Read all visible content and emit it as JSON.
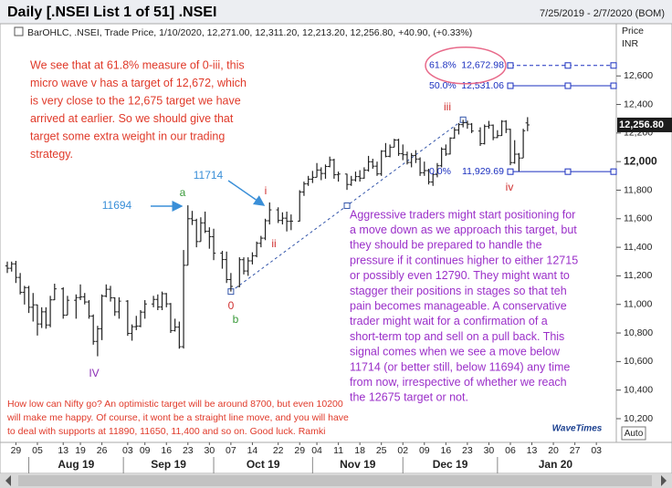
{
  "header": {
    "title": "Daily [.NSEI List 1 of 51] .NSEI",
    "range": "7/25/2019 - 2/7/2020 (BOM)"
  },
  "chart_data": {
    "type": "ohlc",
    "info": "BarOHLC, .NSEI, Trade Price, 1/10/2020, 12,271.00, 12,311.20, 12,213.20, 12,256.80, +40.90, (+0.33%)",
    "axis_title": [
      "Price",
      "INR"
    ],
    "xlim": [
      "2019-07-25",
      "2020-02-07"
    ],
    "ylim": [
      10053,
      12940
    ],
    "yticks": [
      {
        "value": 12600,
        "label": "12,600"
      },
      {
        "value": 12400,
        "label": "12,400"
      },
      {
        "value": 12200,
        "label": "12,200"
      },
      {
        "value": 12000,
        "label": "12,000"
      },
      {
        "value": 11800,
        "label": "11,800"
      },
      {
        "value": 11600,
        "label": "11,600"
      },
      {
        "value": 11400,
        "label": "11,400"
      },
      {
        "value": 11200,
        "label": "11,200"
      },
      {
        "value": 11000,
        "label": "11,000"
      },
      {
        "value": 10800,
        "label": "10,800"
      },
      {
        "value": 10600,
        "label": "10,600"
      },
      {
        "value": 10400,
        "label": "10,400"
      },
      {
        "value": 10200,
        "label": "10,200"
      }
    ],
    "bold_tick": 12000,
    "xticks": [
      {
        "value": "2019-07-29",
        "label": "29"
      },
      {
        "value": "2019-08-05",
        "label": "05"
      },
      {
        "value": "2019-08-13",
        "label": "13"
      },
      {
        "value": "2019-08-19",
        "label": "19"
      },
      {
        "value": "2019-08-26",
        "label": "26"
      },
      {
        "value": "2019-09-03",
        "label": "03"
      },
      {
        "value": "2019-09-09",
        "label": "09"
      },
      {
        "value": "2019-09-16",
        "label": "16"
      },
      {
        "value": "2019-09-23",
        "label": "23"
      },
      {
        "value": "2019-09-30",
        "label": "30"
      },
      {
        "value": "2019-10-07",
        "label": "07"
      },
      {
        "value": "2019-10-14",
        "label": "14"
      },
      {
        "value": "2019-10-22",
        "label": "22"
      },
      {
        "value": "2019-10-29",
        "label": "29"
      },
      {
        "value": "2019-11-04",
        "label": "04"
      },
      {
        "value": "2019-11-11",
        "label": "11"
      },
      {
        "value": "2019-11-18",
        "label": "18"
      },
      {
        "value": "2019-11-25",
        "label": "25"
      },
      {
        "value": "2019-12-02",
        "label": "02"
      },
      {
        "value": "2019-12-09",
        "label": "09"
      },
      {
        "value": "2019-12-16",
        "label": "16"
      },
      {
        "value": "2019-12-23",
        "label": "23"
      },
      {
        "value": "2019-12-30",
        "label": "30"
      },
      {
        "value": "2020-01-06",
        "label": "06"
      },
      {
        "value": "2020-01-13",
        "label": "13"
      },
      {
        "value": "2020-01-20",
        "label": "20"
      },
      {
        "value": "2020-01-27",
        "label": "27"
      },
      {
        "value": "2020-02-03",
        "label": "03"
      }
    ],
    "months": [
      {
        "value": "2019-08-01",
        "label": "Aug 19"
      },
      {
        "value": "2019-09-01",
        "label": "Sep 19"
      },
      {
        "value": "2019-10-01",
        "label": "Oct 19"
      },
      {
        "value": "2019-11-01",
        "label": "Nov 19"
      },
      {
        "value": "2019-12-01",
        "label": "Dec 19"
      },
      {
        "value": "2020-01-01",
        "label": "Jan 20"
      }
    ],
    "color": "#222222",
    "x": [
      "2019-07-25",
      "2019-07-26",
      "2019-07-29",
      "2019-07-30",
      "2019-07-31",
      "2019-08-01",
      "2019-08-02",
      "2019-08-05",
      "2019-08-06",
      "2019-08-07",
      "2019-08-08",
      "2019-08-09",
      "2019-08-13",
      "2019-08-14",
      "2019-08-16",
      "2019-08-19",
      "2019-08-20",
      "2019-08-21",
      "2019-08-22",
      "2019-08-23",
      "2019-08-26",
      "2019-08-27",
      "2019-08-28",
      "2019-08-29",
      "2019-08-30",
      "2019-09-03",
      "2019-09-04",
      "2019-09-05",
      "2019-09-06",
      "2019-09-09",
      "2019-09-11",
      "2019-09-12",
      "2019-09-13",
      "2019-09-16",
      "2019-09-17",
      "2019-09-18",
      "2019-09-19",
      "2019-09-20",
      "2019-09-23",
      "2019-09-24",
      "2019-09-25",
      "2019-09-26",
      "2019-09-27",
      "2019-09-30",
      "2019-10-01",
      "2019-10-03",
      "2019-10-04",
      "2019-10-07",
      "2019-10-09",
      "2019-10-10",
      "2019-10-11",
      "2019-10-14",
      "2019-10-15",
      "2019-10-16",
      "2019-10-17",
      "2019-10-18",
      "2019-10-22",
      "2019-10-23",
      "2019-10-24",
      "2019-10-25",
      "2019-10-29",
      "2019-10-30",
      "2019-10-31",
      "2019-11-01",
      "2019-11-04",
      "2019-11-05",
      "2019-11-06",
      "2019-11-07",
      "2019-11-08",
      "2019-11-11",
      "2019-11-13",
      "2019-11-14",
      "2019-11-15",
      "2019-11-18",
      "2019-11-19",
      "2019-11-20",
      "2019-11-21",
      "2019-11-22",
      "2019-11-25",
      "2019-11-26",
      "2019-11-27",
      "2019-11-28",
      "2019-11-29",
      "2019-12-02",
      "2019-12-03",
      "2019-12-04",
      "2019-12-05",
      "2019-12-06",
      "2019-12-09",
      "2019-12-10",
      "2019-12-11",
      "2019-12-12",
      "2019-12-13",
      "2019-12-16",
      "2019-12-17",
      "2019-12-18",
      "2019-12-19",
      "2019-12-20",
      "2019-12-23",
      "2019-12-24",
      "2019-12-26",
      "2019-12-27",
      "2019-12-30",
      "2019-12-31",
      "2020-01-01",
      "2020-01-02",
      "2020-01-03",
      "2020-01-06",
      "2020-01-07",
      "2020-01-08",
      "2020-01-09",
      "2020-01-10"
    ],
    "open": [
      11270,
      11253,
      11284,
      11189,
      11085,
      11118,
      10980,
      10997,
      10863,
      10948,
      10856,
      11032,
      11109,
      10925,
      11029,
      11048,
      11053,
      11017,
      10918,
      10741,
      10829,
      11058,
      11106,
      11046,
      10948,
      11023,
      10797,
      10844,
      10848,
      10946,
      11003,
      11035,
      10982,
      11075,
      11004,
      10817,
      10841,
      10704,
      11274,
      11600,
      11588,
      11440,
      11571,
      11512,
      11474,
      11359,
      11314,
      11174,
      11126,
      11313,
      11234,
      11305,
      11341,
      11428,
      11464,
      11586,
      11662,
      11588,
      11604,
      11582,
      11583,
      11787,
      11844,
      11877,
      11890,
      11941,
      11917,
      11966,
      12012,
      11908,
      11913,
      11840,
      11872,
      11895,
      11884,
      11940,
      11999,
      11968,
      11914,
      12073,
      12037,
      12101,
      12151,
      12056,
      12048,
      11994,
      12043,
      12018,
      11922,
      11937,
      11857,
      11910,
      11971,
      12087,
      12053,
      12165,
      12221,
      12259,
      12272,
      12262,
      12214,
      12126,
      12246,
      12255,
      12168,
      12182,
      12282,
      12226,
      11993,
      12052,
      12025,
      12271
    ],
    "high": [
      11300,
      11300,
      11305,
      11220,
      11130,
      11130,
      11080,
      10999,
      10980,
      10980,
      11060,
      11145,
      11120,
      11060,
      11070,
      11140,
      11080,
      11030,
      10930,
      10850,
      11070,
      11140,
      11130,
      11050,
      11050,
      11030,
      10860,
      10920,
      10960,
      11030,
      11060,
      11070,
      11090,
      11080,
      11010,
      10900,
      10880,
      11381,
      11694,
      11655,
      11600,
      11610,
      11650,
      11540,
      11530,
      11375,
      11370,
      11220,
      11330,
      11330,
      11330,
      11365,
      11440,
      11480,
      11600,
      11714,
      11680,
      11645,
      11650,
      11630,
      11800,
      11860,
      11900,
      11935,
      11990,
      11960,
      11980,
      12035,
      12020,
      11930,
      11915,
      11900,
      11930,
      11940,
      11960,
      12040,
      12020,
      12000,
      12080,
      12130,
      12120,
      12160,
      12160,
      12120,
      12070,
      12060,
      12080,
      12030,
      12000,
      11950,
      11920,
      11990,
      12100,
      12120,
      12170,
      12240,
      12270,
      12293,
      12287,
      12270,
      12240,
      12260,
      12285,
      12260,
      12220,
      12290,
      12290,
      12230,
      12150,
      12060,
      12230,
      12311.2
    ],
    "low": [
      11220,
      11230,
      11150,
      11070,
      10999,
      10940,
      10880,
      10782,
      10835,
      10830,
      10840,
      11030,
      10900,
      10925,
      10900,
      11030,
      11000,
      10900,
      10718,
      10637,
      10750,
      11050,
      11020,
      10920,
      10900,
      10780,
      10746,
      10820,
      10840,
      10900,
      10980,
      10960,
      10960,
      10980,
      10800,
      10810,
      10690,
      10691,
      11274,
      11556,
      11400,
      11440,
      11500,
      11390,
      11310,
      11250,
      11150,
      11090,
      11120,
      11210,
      11200,
      11280,
      11330,
      11400,
      11450,
      11560,
      11570,
      11560,
      11511,
      11520,
      11580,
      11760,
      11830,
      11850,
      11890,
      11870,
      11880,
      11960,
      11880,
      11860,
      11802,
      11830,
      11860,
      11860,
      11880,
      11930,
      11950,
      11900,
      11900,
      12030,
      12030,
      12100,
      12040,
      12010,
      11980,
      11960,
      11990,
      11900,
      11900,
      11840,
      11830,
      11890,
      11960,
      12040,
      12050,
      12160,
      12190,
      12240,
      12230,
      12200,
      12110,
      12120,
      12230,
      12150,
      12165,
      12180,
      12200,
      11975,
      11985,
      11929,
      12025,
      12213.2
    ],
    "close": [
      11253,
      11284,
      11189,
      11085,
      11118,
      10980,
      10997,
      10863,
      10948,
      10856,
      11032,
      11109,
      10925,
      11029,
      11048,
      11053,
      11017,
      10918,
      10741,
      10829,
      11058,
      11106,
      11046,
      10948,
      11023,
      10797,
      10844,
      10848,
      10946,
      11003,
      11035,
      10982,
      11075,
      11004,
      10817,
      10841,
      10704,
      11274,
      11600,
      11588,
      11440,
      11571,
      11512,
      11474,
      11359,
      11314,
      11174,
      11126,
      11313,
      11234,
      11305,
      11341,
      11428,
      11464,
      11586,
      11662,
      11588,
      11604,
      11582,
      11583,
      11787,
      11844,
      11877,
      11890,
      11941,
      11917,
      11966,
      12012,
      11908,
      11913,
      11840,
      11872,
      11895,
      11884,
      11940,
      11999,
      11968,
      11914,
      12073,
      12037,
      12101,
      12151,
      12056,
      12048,
      11994,
      12043,
      12018,
      11922,
      11937,
      11857,
      11910,
      11971,
      12087,
      12053,
      12165,
      12221,
      12259,
      12272,
      12262,
      12214,
      12126,
      12246,
      12255,
      12168,
      12182,
      12282,
      12226,
      11993,
      12052,
      12025,
      12216,
      12256.8
    ],
    "close_label": "12,256.80",
    "trend_line": {
      "x": [
        "2019-10-07",
        "2019-12-20"
      ],
      "y": [
        11090,
        12293
      ],
      "color": "#3355aa"
    },
    "fib_levels": [
      {
        "label": "61.8%",
        "value": 12672.98,
        "value_label": "12,672.98",
        "start": "2020-01-06",
        "dashed": true
      },
      {
        "label": "50.0%",
        "value": 12531.06,
        "value_label": "12,531.06",
        "start": "2020-01-06",
        "dashed": false
      },
      {
        "label": "0.0%",
        "value": 11929.69,
        "value_label": "11,929.69",
        "start": "2020-01-06",
        "dashed": false
      }
    ],
    "fib_color": "#1a2fbf",
    "wave_labels": [
      {
        "text": "a",
        "color": "#3a9a3a"
      },
      {
        "text": "i",
        "color": "#d03030"
      },
      {
        "text": "ii",
        "color": "#d03030"
      },
      {
        "text": "0",
        "color": "#d03030"
      },
      {
        "text": "b",
        "color": "#3a9a3a"
      },
      {
        "text": "IV",
        "color": "#8a2bb5"
      },
      {
        "text": "iii",
        "color": "#d03030"
      },
      {
        "text": "iv",
        "color": "#d03030"
      }
    ],
    "callouts": [
      {
        "text": "11694",
        "color": "#3a8fd8"
      },
      {
        "text": "11714",
        "color": "#3a8fd8"
      }
    ],
    "notes": [
      {
        "color": "#e03a2a",
        "lines": [
          "We see that at 61.8% measure of 0-iii, this",
          "micro wave v has a target of 12,672, which",
          "is very close to the 12,675 target we have",
          "arrived at earlier. So we should give that",
          "target some extra weight in our trading",
          "strategy."
        ]
      },
      {
        "color": "#9b30c9",
        "lines": [
          "Aggressive traders might start positioning for",
          "a move down as we approach this target, but",
          "they should be prepared to handle the",
          "pressure if it continues higher to either 12715",
          "or possibly even 12790. They might want to",
          "stagger their positions in stages so that teh",
          "pain becomes manageable. A conservative",
          "trader might wait for a confirmation of a",
          "short-term top and sell on a pull back. This",
          "signal comes when we see a move below",
          "11714 (or better still, below 11694) any time",
          "from now, irrespective of whether we reach",
          "the 12675 target or not."
        ]
      },
      {
        "color": "#e03a2a",
        "lines": [
          "How low can Nifty go? An optimistic target will be around 8700, but even 10200",
          "will make me happy. Of course, it wont be a straight line move, and you will have",
          "to deal with supports at 11890, 11650, 11,400 and so on. Good luck. Ramki"
        ]
      }
    ],
    "logo": "WaveTimes",
    "auto_button": "Auto"
  }
}
